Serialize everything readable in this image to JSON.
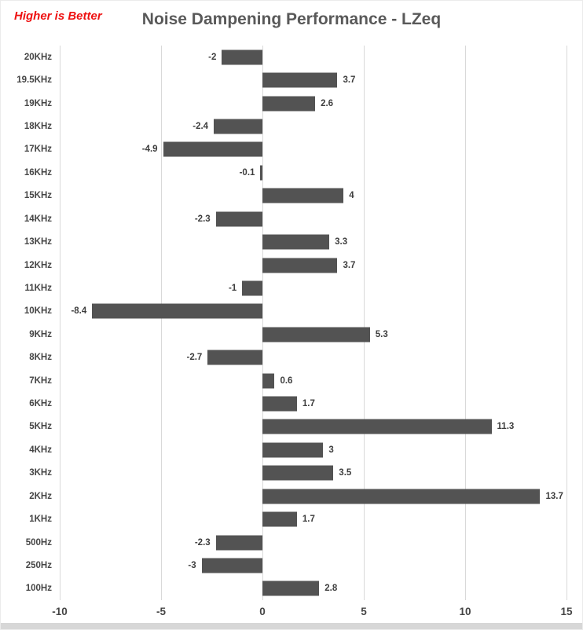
{
  "header": {
    "note": "Higher is Better",
    "note_color": "#ee1111",
    "title": "Noise Dampening Performance - LZeq",
    "title_color": "#595959"
  },
  "chart_data": {
    "type": "bar",
    "orientation": "horizontal",
    "title": "Noise Dampening Performance - LZeq",
    "annotation": "Higher is Better",
    "categories": [
      "20KHz",
      "19.5KHz",
      "19KHz",
      "18KHz",
      "17KHz",
      "16KHz",
      "15KHz",
      "14KHz",
      "13KHz",
      "12KHz",
      "11KHz",
      "10KHz",
      "9KHz",
      "8KHz",
      "7KHz",
      "6KHz",
      "5KHz",
      "4KHz",
      "3KHz",
      "2KHz",
      "1KHz",
      "500Hz",
      "250Hz",
      "100Hz"
    ],
    "values": [
      -2,
      3.7,
      2.6,
      -2.4,
      -4.9,
      -0.1,
      4,
      -2.3,
      3.3,
      3.7,
      -1,
      -8.4,
      5.3,
      -2.7,
      0.6,
      1.7,
      11.3,
      3,
      3.5,
      13.7,
      1.7,
      -2.3,
      -3,
      2.8
    ],
    "x_ticks": [
      -10,
      -5,
      0,
      5,
      10,
      15
    ],
    "xlim": [
      -10,
      15
    ],
    "xlabel": "",
    "ylabel": "",
    "bar_color": "#535353",
    "gridline_color": "#d9d9d9",
    "grid": true,
    "value_labels": true,
    "legend": false
  }
}
